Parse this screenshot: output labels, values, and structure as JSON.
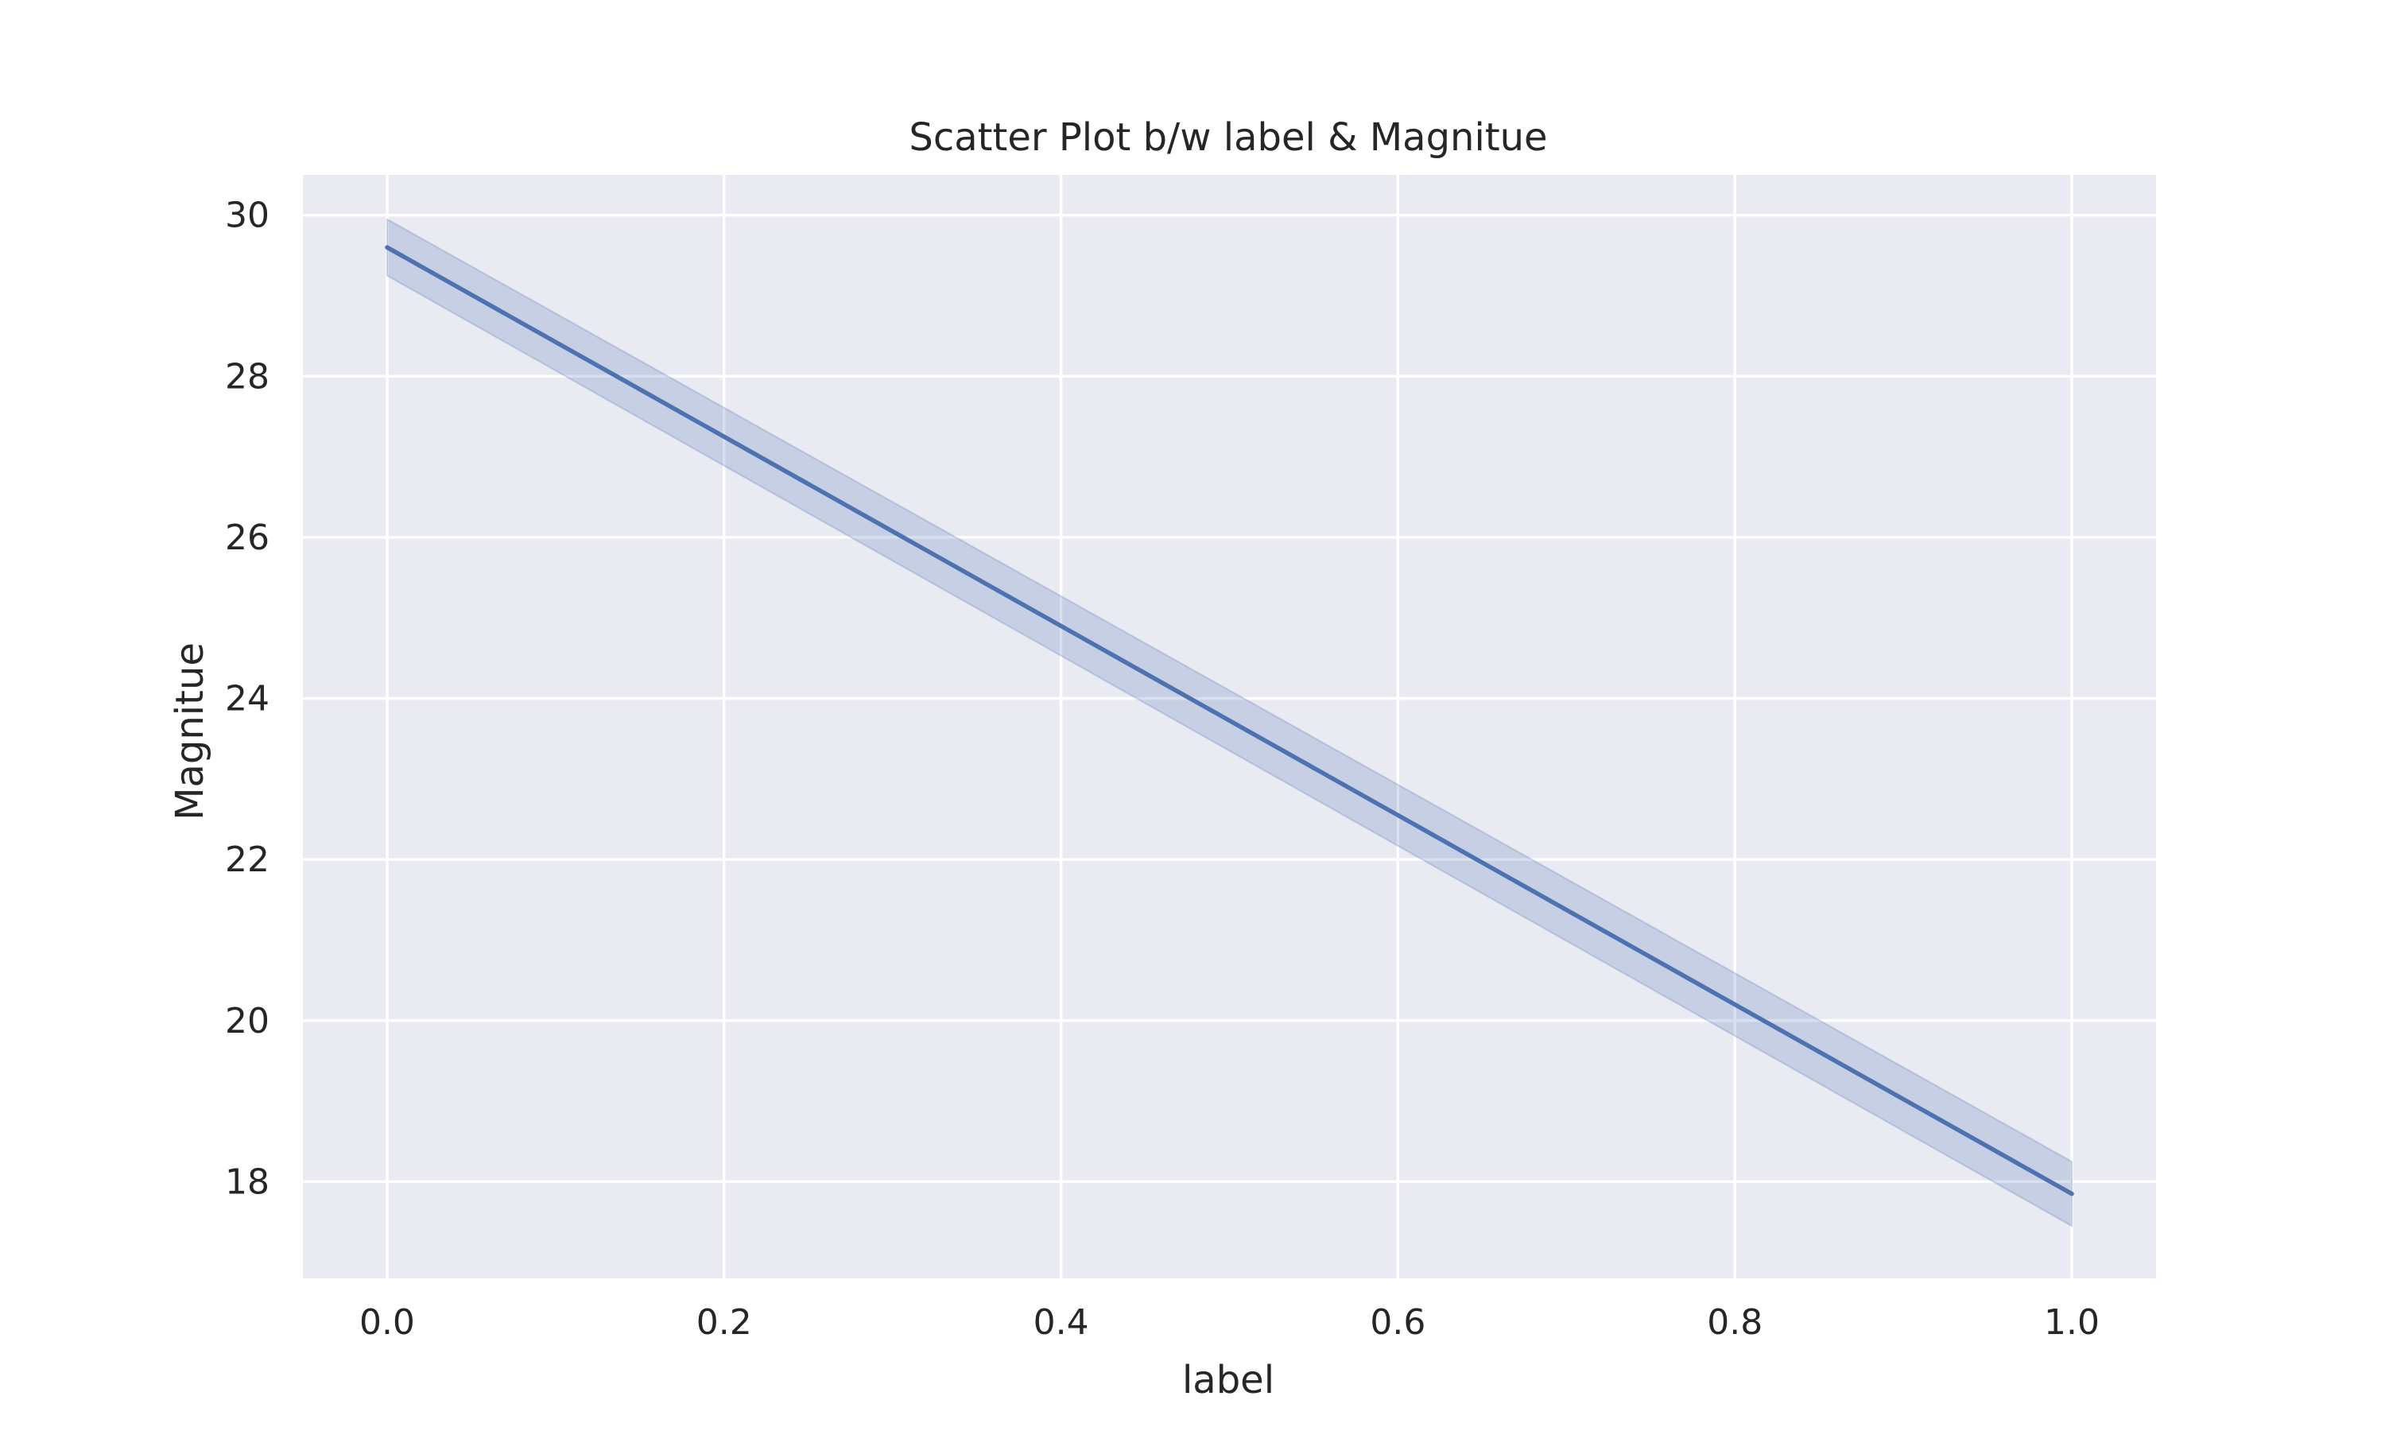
{
  "chart_data": {
    "type": "line",
    "title": "Scatter Plot b/w label & Magnitue",
    "xlabel": "label",
    "ylabel": "Magnitue",
    "xlim": [
      -0.05,
      1.05
    ],
    "ylim": [
      16.8,
      30.5
    ],
    "xticks": [
      0.0,
      0.2,
      0.4,
      0.6,
      0.8,
      1.0
    ],
    "xtick_labels": [
      "0.0",
      "0.2",
      "0.4",
      "0.6",
      "0.8",
      "1.0"
    ],
    "yticks": [
      18,
      20,
      22,
      24,
      26,
      28,
      30
    ],
    "ytick_labels": [
      "18",
      "20",
      "22",
      "24",
      "26",
      "28",
      "30"
    ],
    "grid": true,
    "series": [
      {
        "x": [
          0.0,
          1.0
        ],
        "y": [
          29.6,
          17.85
        ],
        "ci_lower": [
          29.25,
          17.45
        ],
        "ci_upper": [
          29.95,
          18.25
        ]
      }
    ],
    "colors": {
      "line": "#4c72b0",
      "band": "#4c72b0",
      "plot_background": "#eaeaf2",
      "grid": "#ffffff"
    }
  }
}
